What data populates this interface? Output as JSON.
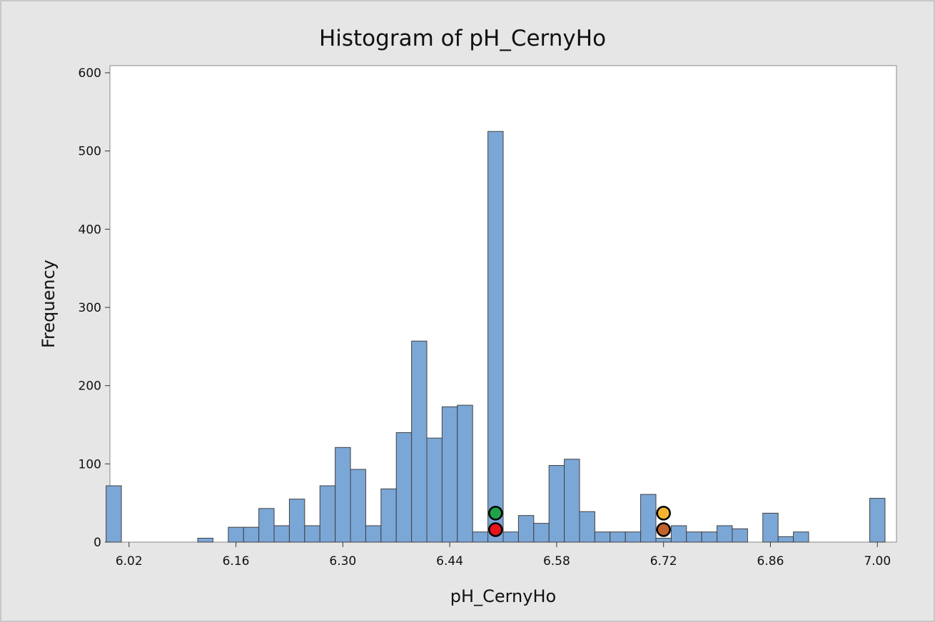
{
  "chart_data": {
    "type": "bar",
    "title": "Histogram of pH_CernyHo",
    "xlabel": "pH_CernyHo",
    "ylabel": "Frequency",
    "bin_width": 0.02,
    "xlim": [
      5.995,
      7.025
    ],
    "ylim": [
      0,
      600
    ],
    "xticks": [
      "6.02",
      "6.16",
      "6.30",
      "6.44",
      "6.58",
      "6.72",
      "6.86",
      "7.00"
    ],
    "yticks": [
      0,
      100,
      200,
      300,
      400,
      500,
      600
    ],
    "bin_centers": [
      6.0,
      6.02,
      6.04,
      6.06,
      6.08,
      6.1,
      6.12,
      6.14,
      6.16,
      6.18,
      6.2,
      6.22,
      6.24,
      6.26,
      6.28,
      6.3,
      6.32,
      6.34,
      6.36,
      6.38,
      6.4,
      6.42,
      6.44,
      6.46,
      6.48,
      6.5,
      6.52,
      6.54,
      6.56,
      6.58,
      6.6,
      6.62,
      6.64,
      6.66,
      6.68,
      6.7,
      6.72,
      6.74,
      6.76,
      6.78,
      6.8,
      6.82,
      6.84,
      6.86,
      6.88,
      6.9,
      6.92,
      6.94,
      6.96,
      6.98,
      7.0
    ],
    "values": [
      72,
      0,
      0,
      0,
      0,
      0,
      5,
      0,
      19,
      19,
      43,
      21,
      55,
      21,
      72,
      121,
      93,
      21,
      68,
      140,
      257,
      133,
      173,
      175,
      13,
      525,
      13,
      34,
      24,
      98,
      106,
      39,
      13,
      13,
      13,
      61,
      5,
      21,
      13,
      13,
      21,
      17,
      0,
      37,
      7,
      13,
      0,
      0,
      0,
      0,
      56
    ],
    "markers": [
      {
        "x": 6.5,
        "y": 37,
        "color": "#1fa24a"
      },
      {
        "x": 6.5,
        "y": 16,
        "color": "#e8131b"
      },
      {
        "x": 6.72,
        "y": 37,
        "color": "#f5b430"
      },
      {
        "x": 6.72,
        "y": 16,
        "color": "#c0622a"
      }
    ],
    "bar_color": "#7ba7d7",
    "bar_edge_color": "#404040",
    "grid": false
  }
}
